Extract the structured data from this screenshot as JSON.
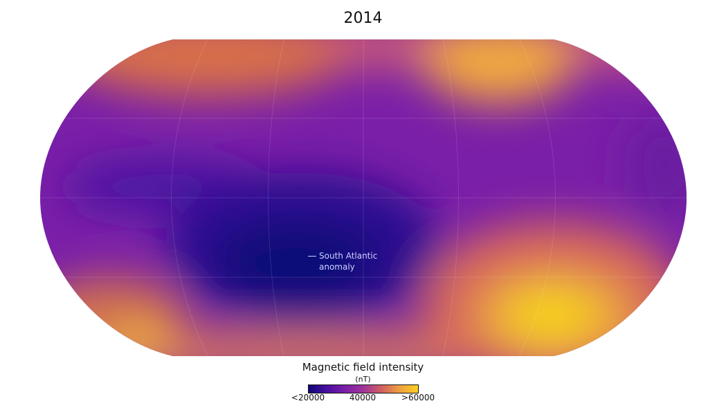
{
  "title": "2014",
  "annotation": {
    "line1": "South Atlantic",
    "line2": "anomaly"
  },
  "legend": {
    "title": "Magnetic field intensity",
    "unit": "(nT)",
    "ticks": [
      "<20000",
      "40000",
      ">60000"
    ],
    "colors": [
      "#0d0878",
      "#7a1fa8",
      "#f8d020"
    ]
  }
}
